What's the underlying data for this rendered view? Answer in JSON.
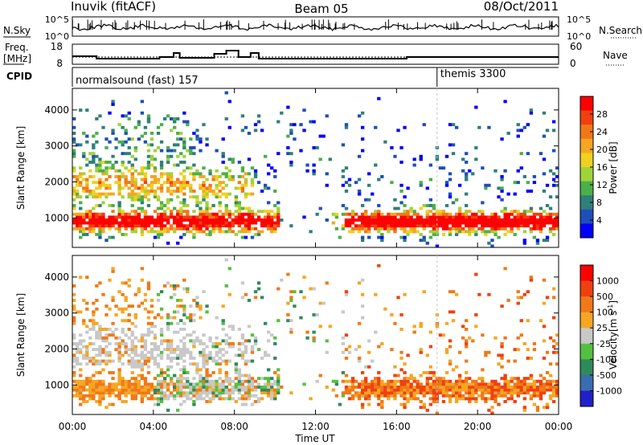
{
  "header": {
    "station": "Inuvik (fitACF)",
    "beam": "Beam 05",
    "date": "08/Oct/2011"
  },
  "noise_panel": {
    "left_label": "N.Sky",
    "right_label": "N.Search",
    "left_ticks": [
      "10^5",
      "10^0"
    ],
    "right_ticks": [
      "10^5",
      "10^0"
    ]
  },
  "freq_panel": {
    "left_label_1": "Freq.",
    "left_label_2": "[MHz]",
    "left_ticks": [
      "18",
      "8"
    ],
    "right_label": "Nave",
    "right_ticks": [
      "60",
      "0"
    ]
  },
  "cpid_panel": {
    "label": "CPID",
    "modes": [
      {
        "name": "normalsound (fast) 157",
        "start_hour": 0
      },
      {
        "name": "themis 3300",
        "start_hour": 18.0
      }
    ]
  },
  "chart_data": [
    {
      "type": "heatmap",
      "name_hint": "power",
      "ylabel": "Slant Range [km]",
      "yticks": [
        "1000",
        "2000",
        "3000",
        "4000"
      ],
      "ylim": [
        180,
        4600
      ],
      "xticks": [
        "00:00",
        "04:00",
        "08:00",
        "12:00",
        "16:00",
        "20:00",
        "00:00"
      ],
      "xlim": [
        0,
        24
      ],
      "colorbar": {
        "label": "Power [dB]",
        "ticks": [
          "4",
          "8",
          "12",
          "16",
          "20",
          "24",
          "28"
        ],
        "colors": [
          "#0000ff",
          "#1e4fb8",
          "#2f7f7a",
          "#4caf4a",
          "#9fd33a",
          "#f0d020",
          "#f5a623",
          "#f07818",
          "#f04010",
          "#ff0000"
        ]
      }
    },
    {
      "type": "heatmap",
      "name_hint": "velocity",
      "ylabel": "Slant Range [km]",
      "yticks": [
        "1000",
        "2000",
        "3000",
        "4000"
      ],
      "ylim": [
        180,
        4600
      ],
      "xticks": [
        "00:00",
        "04:00",
        "08:00",
        "12:00",
        "16:00",
        "20:00",
        "00:00"
      ],
      "xlim": [
        0,
        24
      ],
      "xlabel": "Time UT",
      "colorbar": {
        "label_main": "Velocity",
        "label_units": "[m s",
        "label_exp": "-1",
        "label_close": "]",
        "ticks": [
          "1000",
          "500",
          "100",
          "25",
          "-25",
          "-100",
          "-500",
          "-1000"
        ],
        "colors": [
          "#2020c8",
          "#3a6cb0",
          "#2f8a5a",
          "#55c040",
          "#c8c8c8",
          "#f5a623",
          "#f07818",
          "#f04010",
          "#ff0000"
        ]
      }
    }
  ]
}
